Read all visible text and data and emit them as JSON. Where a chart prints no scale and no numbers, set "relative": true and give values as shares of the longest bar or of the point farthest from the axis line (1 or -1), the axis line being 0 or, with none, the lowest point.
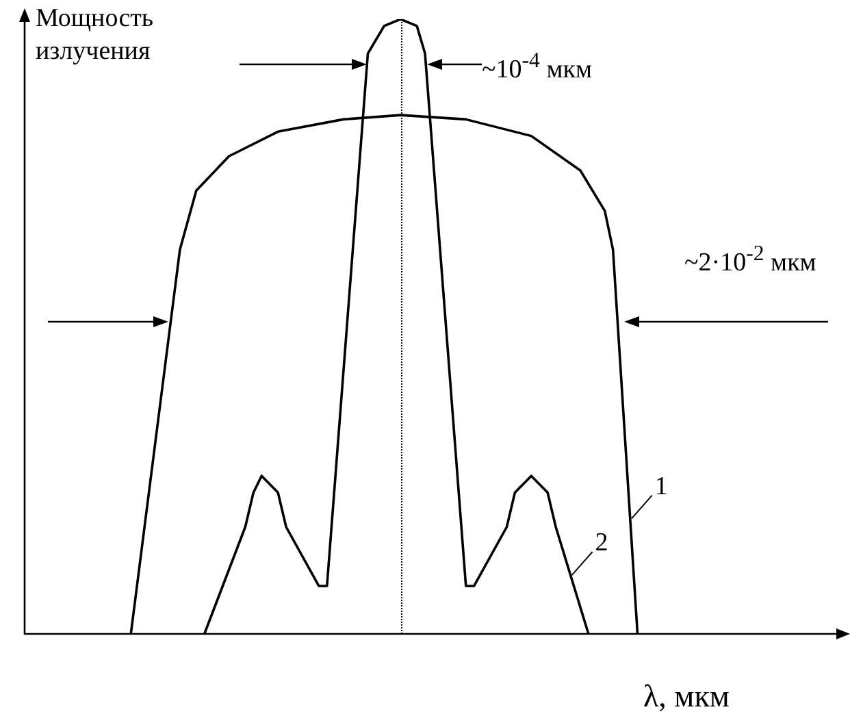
{
  "chart_data": {
    "type": "line",
    "relative": true,
    "ylabel": "Мощность излучения",
    "xlabel": "λ, мкм",
    "legend": false,
    "marker": "none",
    "line_style": "solid",
    "annotations": [
      "~10$^{-4}$ мкм",
      "~2·10$^{-2}$ мкм"
    ],
    "categories": [
      null,
      null,
      null,
      null,
      null,
      null,
      null,
      null,
      null,
      null,
      null,
      null,
      null,
      null,
      null,
      null,
      null,
      null,
      null,
      null,
      null,
      null,
      null,
      null,
      null,
      null,
      null,
      null,
      null,
      null,
      null,
      null,
      null,
      null,
      null,
      null,
      null,
      null,
      null,
      null,
      null,
      null,
      null,
      null,
      null,
      null,
      null,
      null,
      null,
      null,
      null,
      null,
      null,
      null,
      null,
      null,
      null,
      null,
      null,
      null,
      null,
      null,
      null,
      null,
      null,
      null,
      null,
      null,
      null,
      null,
      null,
      null,
      null,
      null,
      null,
      null,
      null,
      null,
      null,
      null,
      null,
      null,
      null,
      null,
      null,
      null,
      null,
      null,
      null,
      null,
      null,
      null,
      null,
      null,
      null,
      null,
      null,
      null,
      null,
      null,
      null
    ],
    "series": [
      {
        "name": "1",
        "color": "#000000",
        "values": [
          null,
          null,
          null,
          null,
          null,
          null,
          null,
          null,
          null,
          null,
          null,
          null,
          null,
          0,
          null,
          null,
          null,
          null,
          null,
          0.625,
          null,
          0.721,
          null,
          null,
          null,
          0.777,
          null,
          null,
          null,
          null,
          null,
          0.817,
          null,
          null,
          null,
          null,
          null,
          null,
          null,
          0.837,
          null,
          null,
          null,
          null,
          null,
          null,
          0.844,
          null,
          null,
          null,
          null,
          null,
          null,
          null,
          0.837,
          null,
          null,
          null,
          null,
          null,
          null,
          null,
          0.81,
          null,
          null,
          null,
          null,
          null,
          0.754,
          null,
          null,
          0.688,
          0.625,
          null,
          null,
          0,
          null,
          null,
          null,
          null,
          null,
          null,
          null,
          null,
          null,
          null,
          null,
          null,
          null,
          null,
          null,
          null,
          null,
          null,
          null,
          null,
          null,
          null,
          null,
          null,
          null
        ]
      },
      {
        "name": "2",
        "color": "#000000",
        "values": [
          null,
          null,
          null,
          null,
          null,
          null,
          null,
          null,
          null,
          null,
          null,
          null,
          null,
          null,
          null,
          null,
          null,
          null,
          null,
          null,
          null,
          null,
          0,
          null,
          null,
          null,
          null,
          0.174,
          0.23,
          0.257,
          null,
          0.23,
          0.174,
          null,
          null,
          null,
          0.078,
          0.078,
          null,
          null,
          null,
          null,
          0.944,
          null,
          0.989,
          null,
          1,
          null,
          0.989,
          0.944,
          null,
          null,
          null,
          null,
          0.078,
          0.078,
          null,
          null,
          null,
          0.174,
          0.23,
          null,
          0.257,
          null,
          0.23,
          0.174,
          null,
          null,
          null,
          0,
          null,
          null,
          null,
          null,
          null,
          null,
          null,
          null,
          null,
          null,
          null,
          null,
          null,
          null,
          null,
          null,
          null,
          null,
          null,
          null,
          null,
          null,
          null,
          null,
          null,
          null,
          null,
          null,
          null,
          null,
          null
        ]
      }
    ]
  }
}
